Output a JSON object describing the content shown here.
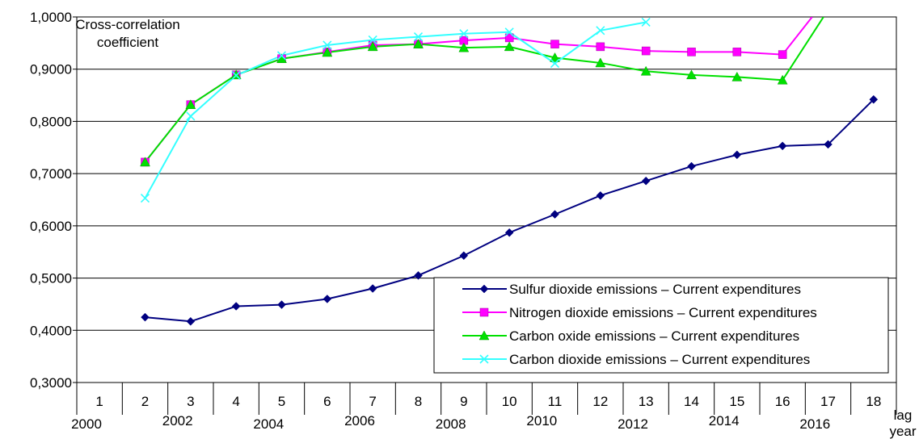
{
  "chart_data": {
    "type": "line",
    "ylabel": "Cross-correlation coefficient",
    "x_unit_label": "lag",
    "x_year_label": "year",
    "ylim": [
      0.3,
      1.0
    ],
    "yticks": [
      "0,3000",
      "0,4000",
      "0,5000",
      "0,6000",
      "0,7000",
      "0,8000",
      "0,9000",
      "1,0000"
    ],
    "categories": [
      "1",
      "2",
      "3",
      "4",
      "5",
      "6",
      "7",
      "8",
      "9",
      "10",
      "11",
      "12",
      "13",
      "14",
      "15",
      "16",
      "17",
      "18"
    ],
    "years": [
      {
        "lag": 1,
        "label": "2000"
      },
      {
        "lag": 3,
        "label": "2002"
      },
      {
        "lag": 5,
        "label": "2004"
      },
      {
        "lag": 7,
        "label": "2006"
      },
      {
        "lag": 9,
        "label": "2008"
      },
      {
        "lag": 11,
        "label": "2010"
      },
      {
        "lag": 13,
        "label": "2012"
      },
      {
        "lag": 15,
        "label": "2014"
      },
      {
        "lag": 17,
        "label": "2016"
      }
    ],
    "grid": true,
    "legend_position": "bottom-right",
    "series": [
      {
        "name": "Sulfur dioxide emissions – Current expenditures",
        "color": "#000080",
        "marker": "diamond",
        "x": [
          2,
          3,
          4,
          5,
          6,
          7,
          8,
          9,
          10,
          11,
          12,
          13,
          14,
          15,
          16,
          17,
          18
        ],
        "values": [
          0.425,
          0.417,
          0.446,
          0.449,
          0.46,
          0.48,
          0.505,
          0.543,
          0.587,
          0.622,
          0.658,
          0.686,
          0.714,
          0.736,
          0.753,
          0.756,
          0.842
        ]
      },
      {
        "name": "Nitrogen dioxide emissions – Current expenditures",
        "color": "#FF00FF",
        "marker": "square",
        "x": [
          2,
          3,
          4,
          5,
          6,
          7,
          8,
          9,
          10,
          11,
          12,
          13,
          14,
          15,
          16,
          16.65
        ],
        "values": [
          0.722,
          0.832,
          0.889,
          0.92,
          0.933,
          0.946,
          0.948,
          0.955,
          0.96,
          0.948,
          0.943,
          0.935,
          0.933,
          0.933,
          0.928,
          1.0
        ],
        "marker_count": 15
      },
      {
        "name": "Carbon oxide emissions – Current expenditures",
        "color": "#00E000",
        "marker": "triangle",
        "x": [
          2,
          3,
          4,
          5,
          6,
          7,
          8,
          9,
          10,
          11,
          12,
          13,
          14,
          15,
          16,
          16.9
        ],
        "values": [
          0.722,
          0.832,
          0.889,
          0.92,
          0.932,
          0.943,
          0.948,
          0.941,
          0.943,
          0.922,
          0.912,
          0.896,
          0.889,
          0.885,
          0.879,
          1.0
        ],
        "marker_count": 15
      },
      {
        "name": "Carbon dioxide emissions – Current expenditures",
        "color": "#33FFFF",
        "marker": "x",
        "x": [
          2,
          3,
          4,
          5,
          6,
          7,
          8,
          9,
          10,
          11,
          12,
          13
        ],
        "values": [
          0.653,
          0.81,
          0.888,
          0.926,
          0.946,
          0.956,
          0.962,
          0.968,
          0.971,
          0.911,
          0.974,
          0.99
        ]
      }
    ]
  }
}
